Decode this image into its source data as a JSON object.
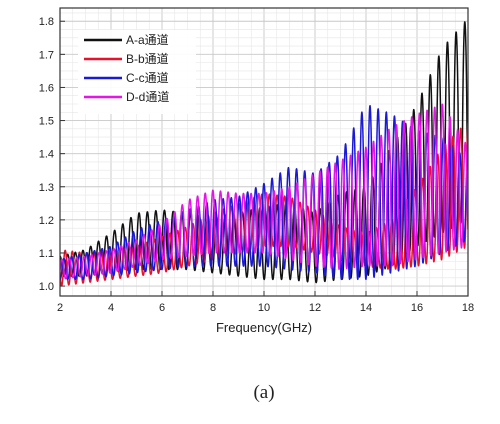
{
  "figure": {
    "caption": "(a)"
  },
  "chart_data": {
    "type": "line",
    "xlabel": "Frequency(GHz)",
    "ylabel": "",
    "xlim": [
      2,
      18
    ],
    "ylim": [
      0.97,
      1.84
    ],
    "xticks": [
      2,
      4,
      6,
      8,
      10,
      12,
      14,
      16,
      18
    ],
    "yticks": [
      1.0,
      1.1,
      1.2,
      1.3,
      1.4,
      1.5,
      1.6,
      1.7,
      1.8
    ],
    "grid": true,
    "legend_position": "top-left",
    "series": [
      {
        "name": "A-a通道",
        "color": "#111111",
        "x": [
          2,
          3,
          4,
          5,
          6,
          7,
          8,
          9,
          10,
          11,
          12,
          13,
          14,
          15,
          16,
          17,
          18
        ],
        "min": [
          1.03,
          1.03,
          1.04,
          1.05,
          1.05,
          1.05,
          1.04,
          1.03,
          1.02,
          1.02,
          1.01,
          1.02,
          1.03,
          1.06,
          1.12,
          1.16,
          1.2
        ],
        "max": [
          1.09,
          1.11,
          1.16,
          1.22,
          1.23,
          1.22,
          1.21,
          1.22,
          1.24,
          1.25,
          1.22,
          1.28,
          1.3,
          1.42,
          1.55,
          1.72,
          1.81
        ],
        "periods": [
          0.3,
          0.3,
          0.32,
          0.32,
          0.34,
          0.34,
          0.34,
          0.34,
          0.34,
          0.34,
          0.34,
          0.34,
          0.34,
          0.32,
          0.32,
          0.34,
          0.34
        ]
      },
      {
        "name": "B-b通道",
        "color": "#e8102a",
        "x": [
          2,
          3,
          4,
          5,
          6,
          7,
          8,
          9,
          10,
          11,
          12,
          13,
          14,
          15,
          16,
          17,
          18
        ],
        "min": [
          1.0,
          1.01,
          1.02,
          1.03,
          1.04,
          1.06,
          1.08,
          1.1,
          1.12,
          1.12,
          1.1,
          1.08,
          1.06,
          1.05,
          1.06,
          1.08,
          1.12
        ],
        "max": [
          1.11,
          1.1,
          1.11,
          1.12,
          1.15,
          1.18,
          1.22,
          1.25,
          1.28,
          1.27,
          1.23,
          1.18,
          1.16,
          1.2,
          1.3,
          1.42,
          1.5
        ],
        "periods": [
          0.28,
          0.28,
          0.3,
          0.3,
          0.3,
          0.3,
          0.3,
          0.3,
          0.3,
          0.3,
          0.3,
          0.3,
          0.3,
          0.3,
          0.3,
          0.3,
          0.3
        ]
      },
      {
        "name": "C-c通道",
        "color": "#1a1ad6",
        "x": [
          2,
          3,
          4,
          5,
          6,
          7,
          8,
          9,
          10,
          11,
          12,
          13,
          14,
          15,
          16,
          17,
          18
        ],
        "min": [
          1.02,
          1.02,
          1.03,
          1.04,
          1.05,
          1.06,
          1.06,
          1.06,
          1.06,
          1.05,
          1.04,
          1.02,
          1.02,
          1.04,
          1.06,
          1.1,
          1.14
        ],
        "max": [
          1.08,
          1.1,
          1.12,
          1.17,
          1.2,
          1.23,
          1.26,
          1.27,
          1.31,
          1.36,
          1.34,
          1.4,
          1.55,
          1.52,
          1.47,
          1.45,
          1.38
        ],
        "periods": [
          0.3,
          0.3,
          0.3,
          0.32,
          0.32,
          0.32,
          0.32,
          0.32,
          0.32,
          0.32,
          0.32,
          0.32,
          0.32,
          0.32,
          0.32,
          0.32,
          0.32
        ]
      },
      {
        "name": "D-d通道",
        "color": "#e316e6",
        "x": [
          2,
          3,
          4,
          5,
          6,
          7,
          8,
          9,
          10,
          11,
          12,
          13,
          14,
          15,
          16,
          17,
          18
        ],
        "min": [
          1.02,
          1.03,
          1.04,
          1.06,
          1.08,
          1.09,
          1.1,
          1.1,
          1.1,
          1.08,
          1.06,
          1.05,
          1.06,
          1.06,
          1.08,
          1.1,
          1.12
        ],
        "max": [
          1.08,
          1.09,
          1.11,
          1.14,
          1.19,
          1.26,
          1.29,
          1.28,
          1.28,
          1.3,
          1.34,
          1.38,
          1.42,
          1.48,
          1.52,
          1.55,
          1.42
        ],
        "periods": [
          0.29,
          0.29,
          0.29,
          0.3,
          0.3,
          0.3,
          0.3,
          0.3,
          0.3,
          0.3,
          0.3,
          0.3,
          0.3,
          0.3,
          0.3,
          0.3,
          0.3
        ]
      }
    ]
  }
}
